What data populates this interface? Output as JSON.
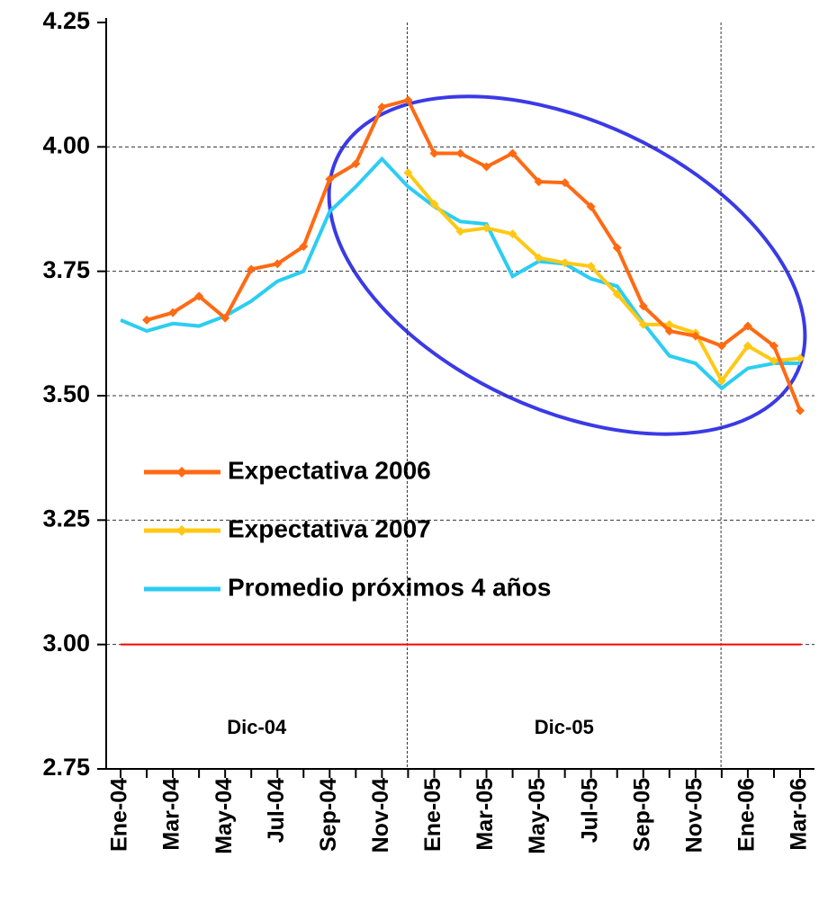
{
  "chart_data": {
    "type": "line",
    "categories": [
      "Ene-04",
      null,
      "Mar-04",
      null,
      "May-04",
      null,
      "Jul-04",
      null,
      "Sep-04",
      null,
      "Nov-04",
      null,
      "Ene-05",
      null,
      "Mar-05",
      null,
      "May-05",
      null,
      "Jul-05",
      null,
      "Sep-05",
      null,
      "Nov-05",
      null,
      "Ene-06",
      null,
      "Mar-06"
    ],
    "series": [
      {
        "name": "Expectativa 2006",
        "color": "#ff6a13",
        "marker": "diamond",
        "values": [
          null,
          3.652,
          3.667,
          3.7,
          3.656,
          3.754,
          3.765,
          3.8,
          3.935,
          3.966,
          4.08,
          4.094,
          3.987,
          3.987,
          3.96,
          3.987,
          3.93,
          3.928,
          3.88,
          3.797,
          3.68,
          3.63,
          3.62,
          3.6,
          3.64,
          3.6,
          3.47
        ]
      },
      {
        "name": "Expectativa 2007",
        "color": "#ffc814",
        "marker": "diamond",
        "values": [
          null,
          null,
          null,
          null,
          null,
          null,
          null,
          null,
          null,
          null,
          null,
          3.948,
          3.885,
          3.83,
          3.837,
          3.825,
          3.777,
          3.767,
          3.76,
          3.704,
          3.643,
          3.643,
          3.626,
          3.53,
          3.6,
          3.57,
          3.575
        ]
      },
      {
        "name": "Promedio próximos 4 años",
        "color": "#2ccdf2",
        "marker": "none",
        "values": [
          3.652,
          3.63,
          3.645,
          3.64,
          3.66,
          3.69,
          3.73,
          3.75,
          3.87,
          3.92,
          3.976,
          3.92,
          3.88,
          3.85,
          3.845,
          3.74,
          3.77,
          3.765,
          3.735,
          3.72,
          3.646,
          3.58,
          3.565,
          3.515,
          3.555,
          3.565,
          3.565
        ]
      }
    ],
    "ylim": [
      2.75,
      4.25
    ],
    "yticks": [
      2.75,
      {
        "value": 3,
        "label": "3.00"
      },
      3.25,
      {
        "value": 3.5,
        "label": "3.50"
      },
      3.75,
      {
        "value": 4,
        "label": "4.00"
      },
      4.25
    ],
    "grid": true,
    "reference_line": {
      "value": 3,
      "color": "#ff0000"
    },
    "annotations": [
      "Dic-04",
      "Dic-05"
    ],
    "legend": "left"
  }
}
